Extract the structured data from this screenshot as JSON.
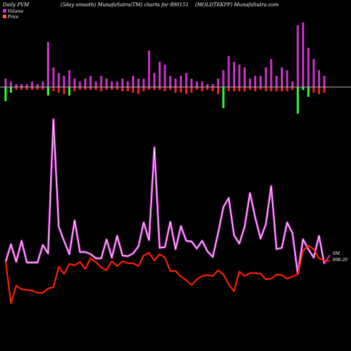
{
  "header": {
    "left": "Daily PVM",
    "center": "(5day smooth) MunafaSutra(TM) charts for 890151",
    "right": "(MOLDTEKPP) MunafaSutra.com"
  },
  "legend": [
    {
      "label": "Volume",
      "color": "#cc33cc"
    },
    {
      "label": "Price",
      "color": "#ff6633"
    }
  ],
  "right_labels": {
    "volume_value": "0M",
    "price_value": "898.20"
  },
  "colors": {
    "background": "#000000",
    "volume_line": "#cc33cc",
    "price_line": "#ff2200",
    "bar_up": "#cc33cc",
    "bar_down": "#ff2222",
    "bar_green": "#33ff33",
    "zero_line": "#bbbbbb"
  },
  "chart_data": {
    "type": "line",
    "series": [
      {
        "name": "Volume",
        "values": [
          373,
          348,
          373,
          343,
          374,
          374,
          374,
          349,
          361,
          170,
          323,
          343,
          362,
          314,
          359,
          359,
          362,
          368,
          368,
          341,
          367,
          336,
          364,
          365,
          361,
          351,
          317,
          342,
          210,
          353,
          352,
          316,
          355,
          322,
          343,
          344,
          354,
          343,
          358,
          366,
          332,
          295,
          282,
          335,
          347,
          323,
          275,
          310,
          340,
          319,
          265,
          355,
          353,
          317,
          332,
          390,
          341,
          355,
          367,
          336,
          376
        ]
      },
      {
        "name": "Price",
        "values": [
          372,
          432,
          407,
          412,
          413,
          414,
          417,
          417,
          411,
          409,
          380,
          390,
          376,
          378,
          373,
          383,
          368,
          373,
          381,
          385,
          372,
          379,
          372,
          375,
          375,
          379,
          364,
          360,
          371,
          362,
          367,
          386,
          386,
          394,
          399,
          406,
          398,
          393,
          392,
          393,
          385,
          391,
          405,
          415,
          387,
          393,
          389,
          389,
          390,
          398,
          397,
          391,
          392,
          397,
          394,
          391,
          357,
          350,
          355,
          368,
          371
        ]
      }
    ],
    "bars": {
      "up": [
        12,
        8,
        4,
        4,
        4,
        8,
        4,
        8,
        64,
        28,
        20,
        16,
        24,
        12,
        8,
        12,
        16,
        8,
        16,
        12,
        8,
        8,
        12,
        8,
        16,
        12,
        12,
        52,
        20,
        36,
        32,
        16,
        12,
        16,
        20,
        12,
        8,
        8,
        4,
        4,
        12,
        24,
        44,
        36,
        32,
        28,
        12,
        16,
        16,
        28,
        40,
        16,
        28,
        24,
        8,
        88,
        92,
        56,
        40,
        24,
        16
      ],
      "down": [
        20,
        8,
        4,
        4,
        4,
        4,
        4,
        4,
        12,
        6,
        8,
        10,
        12,
        6,
        4,
        4,
        4,
        4,
        6,
        4,
        4,
        4,
        6,
        6,
        8,
        10,
        6,
        4,
        4,
        4,
        6,
        4,
        8,
        8,
        10,
        8,
        4,
        6,
        4,
        6,
        10,
        30,
        6,
        6,
        6,
        6,
        4,
        6,
        4,
        6,
        6,
        6,
        6,
        6,
        4,
        38,
        4,
        14,
        8,
        10,
        8
      ],
      "down_green": [
        true,
        true,
        false,
        false,
        false,
        false,
        false,
        false,
        true,
        false,
        false,
        false,
        true,
        false,
        false,
        false,
        false,
        false,
        false,
        false,
        false,
        false,
        false,
        false,
        false,
        false,
        false,
        false,
        false,
        false,
        false,
        false,
        false,
        false,
        false,
        false,
        false,
        false,
        false,
        false,
        false,
        true,
        false,
        false,
        false,
        false,
        false,
        false,
        false,
        false,
        false,
        false,
        false,
        false,
        false,
        true,
        true,
        true,
        false,
        false,
        false
      ]
    }
  }
}
